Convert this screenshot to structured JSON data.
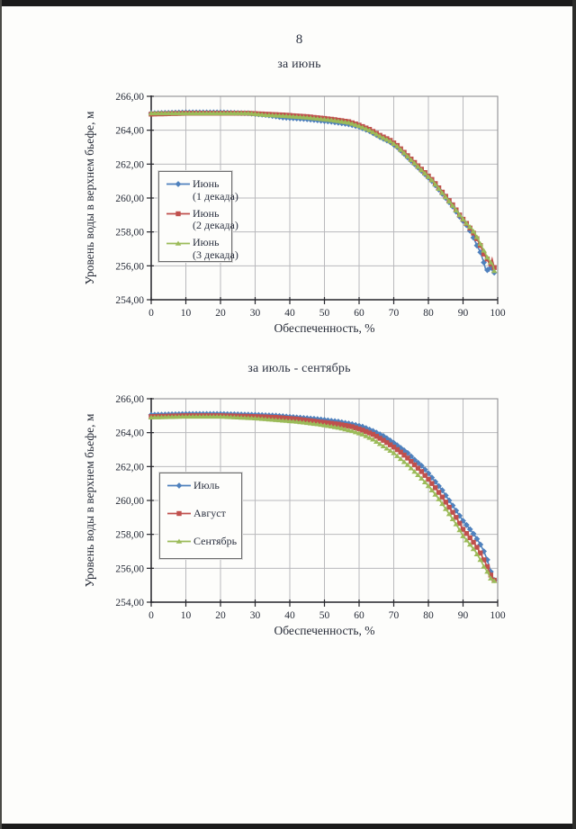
{
  "page": {
    "number": "8"
  },
  "chart_data": [
    {
      "type": "line",
      "title": "за июнь",
      "xlabel": "Обеспеченность, %",
      "ylabel": "Уровень воды в верхнем бьефе, м",
      "xlim": [
        0,
        100
      ],
      "ylim": [
        254,
        266
      ],
      "grid": true,
      "legend_position": "left-inside",
      "xticks": [
        0,
        10,
        20,
        30,
        40,
        50,
        60,
        70,
        80,
        90,
        100
      ],
      "xtick_labels": [
        "0",
        "10",
        "20",
        "30",
        "40",
        "50",
        "60",
        "70",
        "80",
        "90",
        "100"
      ],
      "yticks": [
        266,
        264,
        262,
        260,
        258,
        256,
        254
      ],
      "ytick_labels": [
        "266,00",
        "264,00",
        "262,00",
        "260,00",
        "258,00",
        "256,00",
        "254,00"
      ],
      "series": [
        {
          "name": "Июнь (1 декада)",
          "legend_lines": [
            "Июнь",
            "(1 декада)"
          ],
          "color": "#4F81BD",
          "marker": "diamond",
          "points": [
            [
              0,
              265.0
            ],
            [
              10,
              265.05
            ],
            [
              20,
              265.05
            ],
            [
              28,
              265.0
            ],
            [
              33,
              264.9
            ],
            [
              38,
              264.75
            ],
            [
              45,
              264.65
            ],
            [
              52,
              264.5
            ],
            [
              57,
              264.35
            ],
            [
              60,
              264.2
            ],
            [
              63,
              263.95
            ],
            [
              66,
              263.6
            ],
            [
              69,
              263.3
            ],
            [
              71,
              263.0
            ],
            [
              73,
              262.6
            ],
            [
              75,
              262.2
            ],
            [
              77,
              261.8
            ],
            [
              79,
              261.4
            ],
            [
              81,
              261.0
            ],
            [
              83,
              260.5
            ],
            [
              85,
              260.0
            ],
            [
              87,
              259.5
            ],
            [
              89,
              258.9
            ],
            [
              91,
              258.4
            ],
            [
              92.5,
              257.9
            ],
            [
              94,
              257.2
            ],
            [
              95,
              256.8
            ],
            [
              96,
              256.2
            ],
            [
              96.5,
              255.8
            ],
            [
              97.5,
              255.7
            ],
            [
              98,
              255.9
            ],
            [
              98.5,
              255.7
            ],
            [
              99,
              255.6
            ]
          ]
        },
        {
          "name": "Июнь (2 декада)",
          "legend_lines": [
            "Июнь",
            "(2 декада)"
          ],
          "color": "#C0504D",
          "marker": "square",
          "points": [
            [
              0,
              264.95
            ],
            [
              10,
              265.0
            ],
            [
              20,
              265.0
            ],
            [
              28,
              265.0
            ],
            [
              33,
              264.95
            ],
            [
              38,
              264.9
            ],
            [
              45,
              264.8
            ],
            [
              52,
              264.65
            ],
            [
              57,
              264.5
            ],
            [
              60,
              264.3
            ],
            [
              63,
              264.05
            ],
            [
              66,
              263.7
            ],
            [
              69,
              263.4
            ],
            [
              71,
              263.1
            ],
            [
              73,
              262.7
            ],
            [
              75,
              262.3
            ],
            [
              77,
              261.9
            ],
            [
              79,
              261.5
            ],
            [
              81,
              261.1
            ],
            [
              83,
              260.6
            ],
            [
              85,
              260.1
            ],
            [
              87,
              259.6
            ],
            [
              89,
              259.0
            ],
            [
              91,
              258.5
            ],
            [
              92.5,
              258.1
            ],
            [
              94,
              257.6
            ],
            [
              95,
              257.2
            ],
            [
              96,
              256.7
            ],
            [
              97,
              256.4
            ],
            [
              97.8,
              256.0
            ],
            [
              98.4,
              256.4
            ],
            [
              99,
              255.9
            ]
          ]
        },
        {
          "name": "Июнь (3 декада)",
          "legend_lines": [
            "Июнь",
            "(3 декада)"
          ],
          "color": "#9BBB59",
          "marker": "triangle",
          "points": [
            [
              0,
              265.0
            ],
            [
              10,
              265.0
            ],
            [
              20,
              265.0
            ],
            [
              28,
              265.0
            ],
            [
              33,
              264.9
            ],
            [
              38,
              264.85
            ],
            [
              45,
              264.75
            ],
            [
              52,
              264.6
            ],
            [
              57,
              264.45
            ],
            [
              60,
              264.25
            ],
            [
              63,
              264.0
            ],
            [
              66,
              263.65
            ],
            [
              69,
              263.35
            ],
            [
              71,
              263.05
            ],
            [
              73,
              262.65
            ],
            [
              75,
              262.25
            ],
            [
              77,
              261.85
            ],
            [
              79,
              261.45
            ],
            [
              81,
              261.05
            ],
            [
              83,
              260.55
            ],
            [
              85,
              260.05
            ],
            [
              87,
              259.55
            ],
            [
              89,
              259.0
            ],
            [
              91,
              258.5
            ],
            [
              92.5,
              258.2
            ],
            [
              94,
              257.7
            ],
            [
              95,
              257.3
            ],
            [
              96,
              256.9
            ],
            [
              97,
              256.5
            ],
            [
              98,
              256.2
            ],
            [
              98.7,
              256.0
            ],
            [
              99,
              255.7
            ]
          ]
        }
      ]
    },
    {
      "type": "line",
      "title": "за июль - сентябрь",
      "xlabel": "Обеспеченность, %",
      "ylabel": "Уровень воды в верхнем бьефе, м",
      "xlim": [
        0,
        100
      ],
      "ylim": [
        254,
        266
      ],
      "grid": true,
      "legend_position": "left-inside",
      "xticks": [
        0,
        10,
        20,
        30,
        40,
        50,
        60,
        70,
        80,
        90,
        100
      ],
      "xtick_labels": [
        "0",
        "10",
        "20",
        "30",
        "40",
        "50",
        "60",
        "70",
        "80",
        "90",
        "100"
      ],
      "yticks": [
        266,
        264,
        262,
        260,
        258,
        256,
        254
      ],
      "ytick_labels": [
        "266,00",
        "264,00",
        "262,00",
        "260,00",
        "258,00",
        "256,00",
        "254,00"
      ],
      "series": [
        {
          "name": "Июль",
          "legend_lines": [
            "Июль"
          ],
          "color": "#4F81BD",
          "marker": "diamond",
          "points": [
            [
              0,
              265.05
            ],
            [
              10,
              265.1
            ],
            [
              20,
              265.1
            ],
            [
              30,
              265.05
            ],
            [
              36,
              265.0
            ],
            [
              42,
              264.9
            ],
            [
              48,
              264.8
            ],
            [
              54,
              264.65
            ],
            [
              58,
              264.5
            ],
            [
              61,
              264.35
            ],
            [
              64,
              264.1
            ],
            [
              67,
              263.8
            ],
            [
              70,
              263.4
            ],
            [
              72,
              263.1
            ],
            [
              74,
              262.8
            ],
            [
              76,
              262.4
            ],
            [
              78,
              262.05
            ],
            [
              80,
              261.6
            ],
            [
              82,
              261.1
            ],
            [
              84,
              260.6
            ],
            [
              86,
              260.0
            ],
            [
              88,
              259.4
            ],
            [
              90,
              258.8
            ],
            [
              92,
              258.3
            ],
            [
              93.5,
              257.9
            ],
            [
              95,
              257.4
            ],
            [
              96,
              257.0
            ],
            [
              97,
              256.5
            ],
            [
              98,
              255.8
            ],
            [
              98.7,
              255.4
            ],
            [
              99,
              255.3
            ]
          ]
        },
        {
          "name": "Август",
          "legend_lines": [
            "Август"
          ],
          "color": "#C0504D",
          "marker": "square",
          "points": [
            [
              0,
              264.95
            ],
            [
              10,
              265.0
            ],
            [
              20,
              265.0
            ],
            [
              30,
              264.95
            ],
            [
              36,
              264.9
            ],
            [
              42,
              264.8
            ],
            [
              48,
              264.65
            ],
            [
              54,
              264.5
            ],
            [
              58,
              264.35
            ],
            [
              61,
              264.15
            ],
            [
              64,
              263.9
            ],
            [
              67,
              263.55
            ],
            [
              70,
              263.15
            ],
            [
              72,
              262.85
            ],
            [
              74,
              262.5
            ],
            [
              76,
              262.1
            ],
            [
              78,
              261.7
            ],
            [
              80,
              261.25
            ],
            [
              82,
              260.75
            ],
            [
              84,
              260.2
            ],
            [
              86,
              259.6
            ],
            [
              88,
              259.0
            ],
            [
              90,
              258.3
            ],
            [
              92,
              257.8
            ],
            [
              93.5,
              257.4
            ],
            [
              95,
              256.9
            ],
            [
              96,
              256.5
            ],
            [
              97,
              256.1
            ],
            [
              98,
              255.6
            ],
            [
              98.7,
              255.4
            ],
            [
              99,
              255.3
            ]
          ]
        },
        {
          "name": "Сентябрь",
          "legend_lines": [
            "Сентябрь"
          ],
          "color": "#9BBB59",
          "marker": "triangle",
          "points": [
            [
              0,
              264.9
            ],
            [
              10,
              264.95
            ],
            [
              20,
              264.95
            ],
            [
              30,
              264.85
            ],
            [
              36,
              264.75
            ],
            [
              42,
              264.65
            ],
            [
              48,
              264.5
            ],
            [
              54,
              264.3
            ],
            [
              58,
              264.1
            ],
            [
              61,
              263.9
            ],
            [
              64,
              263.6
            ],
            [
              67,
              263.2
            ],
            [
              70,
              262.8
            ],
            [
              72,
              262.45
            ],
            [
              74,
              262.1
            ],
            [
              76,
              261.7
            ],
            [
              78,
              261.3
            ],
            [
              80,
              260.85
            ],
            [
              82,
              260.35
            ],
            [
              84,
              259.8
            ],
            [
              86,
              259.2
            ],
            [
              88,
              258.6
            ],
            [
              90,
              257.9
            ],
            [
              92,
              257.4
            ],
            [
              93.5,
              257.0
            ],
            [
              95,
              256.5
            ],
            [
              96,
              256.1
            ],
            [
              97,
              255.8
            ],
            [
              98,
              255.4
            ],
            [
              98.7,
              255.3
            ],
            [
              99,
              255.25
            ]
          ]
        }
      ]
    }
  ]
}
